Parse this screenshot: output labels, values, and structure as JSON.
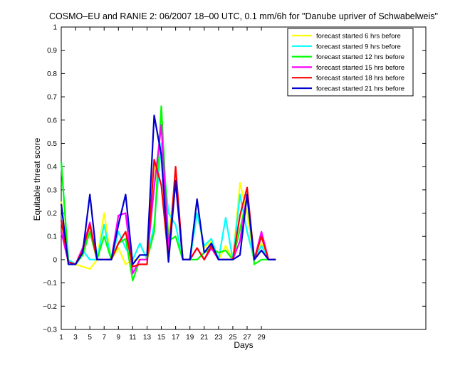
{
  "chart_data": {
    "type": "line",
    "title": "COSMO–EU and RANIE 2: 06/2007 18–00 UTC, 0.1 mm/6h for \"Danube upriver of Schwabelweis\"",
    "xlabel": "Days",
    "ylabel": "Equitable threat score",
    "xlim": [
      1,
      52
    ],
    "ylim": [
      -0.3,
      1
    ],
    "x_ticks": [
      1,
      3,
      5,
      7,
      9,
      11,
      13,
      15,
      17,
      19,
      21,
      23,
      25,
      27,
      29
    ],
    "y_ticks": [
      -0.3,
      -0.2,
      -0.1,
      0,
      0.1,
      0.2,
      0.3,
      0.4,
      0.5,
      0.6,
      0.7,
      0.8,
      0.9,
      1
    ],
    "y_tick_labels": [
      "−0.3",
      "−0.2",
      "−0.1",
      "0",
      "0.1",
      "0.2",
      "0.3",
      "0.4",
      "0.5",
      "0.6",
      "0.7",
      "0.8",
      "0.9",
      "1"
    ],
    "legend_position": "top-right",
    "x": [
      1,
      2,
      3,
      4,
      5,
      6,
      7,
      8,
      9,
      10,
      11,
      12,
      13,
      14,
      15,
      16,
      17,
      18,
      19,
      20,
      21,
      22,
      23,
      24,
      25,
      26,
      27,
      28,
      29,
      30,
      31
    ],
    "series": [
      {
        "name": "forecast started 6 hrs before",
        "color": "#ffff00",
        "values": [
          0.25,
          -0.01,
          -0.02,
          -0.03,
          -0.04,
          0.0,
          0.2,
          0.0,
          0.05,
          -0.02,
          0.0,
          0.0,
          0.0,
          0.4,
          0.45,
          0.1,
          0.35,
          0.0,
          0.0,
          0.2,
          0.05,
          0.08,
          0.0,
          0.06,
          0.0,
          0.33,
          0.2,
          0.0,
          0.07,
          0.0,
          0.0
        ]
      },
      {
        "name": "forecast started 9 hrs before",
        "color": "#00ffff",
        "values": [
          0.42,
          0.0,
          -0.02,
          0.04,
          0.0,
          0.0,
          0.15,
          0.0,
          0.12,
          0.05,
          0.0,
          0.07,
          0.0,
          0.15,
          0.5,
          0.2,
          0.15,
          0.0,
          0.0,
          0.2,
          0.06,
          0.09,
          0.0,
          0.18,
          0.0,
          0.28,
          0.12,
          0.0,
          0.06,
          0.0,
          0.0
        ]
      },
      {
        "name": "forecast started 12 hrs before",
        "color": "#00ff00",
        "values": [
          0.42,
          -0.01,
          -0.02,
          0.02,
          0.12,
          0.0,
          0.1,
          0.0,
          0.07,
          0.09,
          -0.09,
          0.0,
          0.0,
          0.12,
          0.66,
          0.08,
          0.1,
          0.0,
          0.0,
          0.0,
          0.03,
          0.05,
          0.03,
          0.04,
          0.0,
          0.13,
          0.27,
          -0.02,
          0.0,
          0.0,
          0.0
        ]
      },
      {
        "name": "forecast started 15 hrs before",
        "color": "#ff00ff",
        "values": [
          0.12,
          -0.01,
          -0.02,
          0.05,
          0.16,
          0.0,
          0.0,
          0.0,
          0.19,
          0.2,
          -0.06,
          0.0,
          0.0,
          0.31,
          0.58,
          0.05,
          0.33,
          0.0,
          0.0,
          0.05,
          0.0,
          0.05,
          0.0,
          0.0,
          0.0,
          0.08,
          0.28,
          0.0,
          0.12,
          0.0,
          0.0
        ]
      },
      {
        "name": "forecast started 18 hrs before",
        "color": "#ff0000",
        "values": [
          0.17,
          -0.01,
          -0.02,
          0.04,
          0.15,
          0.0,
          0.0,
          0.0,
          0.07,
          0.12,
          -0.03,
          -0.02,
          -0.02,
          0.43,
          0.32,
          0.0,
          0.4,
          0.0,
          0.0,
          0.05,
          0.0,
          0.06,
          0.0,
          0.0,
          0.0,
          0.19,
          0.31,
          0.0,
          0.1,
          0.0,
          0.0
        ]
      },
      {
        "name": "forecast started 21 hrs before",
        "color": "#0000cc",
        "values": [
          0.24,
          -0.02,
          -0.02,
          0.03,
          0.28,
          0.0,
          0.0,
          0.0,
          0.15,
          0.28,
          -0.02,
          0.02,
          0.02,
          0.62,
          0.45,
          -0.01,
          0.34,
          0.0,
          0.0,
          0.26,
          0.03,
          0.07,
          0.0,
          0.0,
          0.0,
          0.02,
          0.28,
          0.0,
          0.04,
          0.0,
          0.0
        ]
      }
    ]
  }
}
